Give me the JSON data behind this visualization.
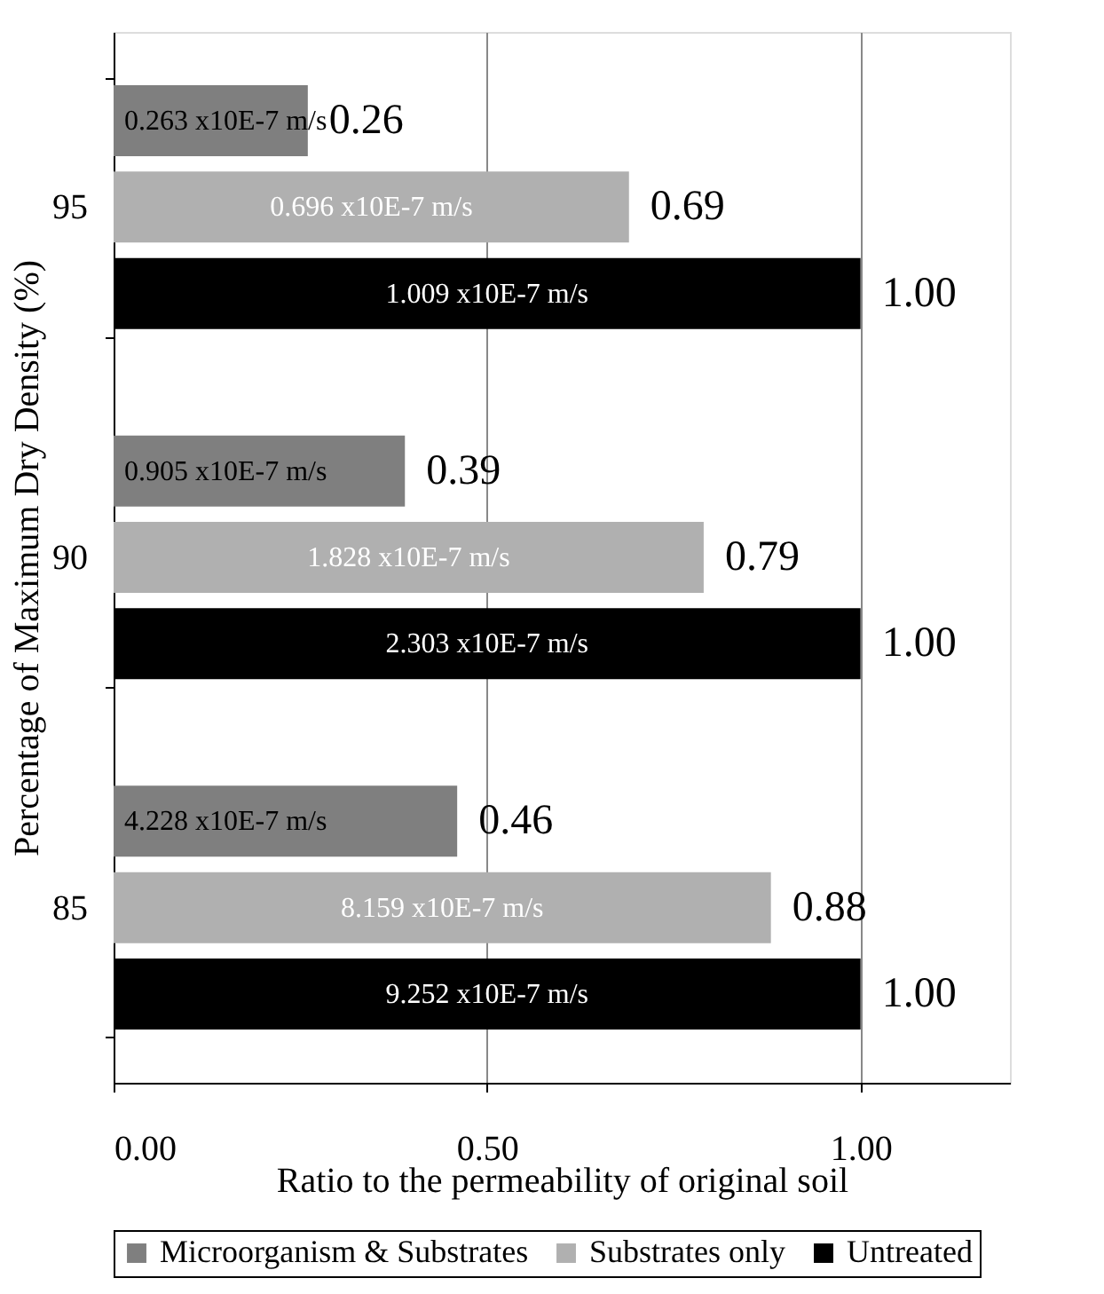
{
  "chart_data": {
    "type": "bar",
    "orientation": "horizontal",
    "xlabel": "Ratio to the permeability of original soil",
    "ylabel": "Percentage of Maximum Dry Density (%)",
    "categories": [
      "95",
      "90",
      "85"
    ],
    "series": [
      {
        "name": "Microorganism & Substrates",
        "color": "#7f7f7f",
        "values": [
          0.26,
          0.39,
          0.46
        ],
        "value_labels": [
          "0.26",
          "0.39",
          "0.46"
        ]
      },
      {
        "name": "Substrates only",
        "color": "#b0b0b0",
        "values": [
          0.69,
          0.79,
          0.88
        ],
        "value_labels": [
          "0.69",
          "0.79",
          "0.88"
        ]
      },
      {
        "name": "Untreated",
        "color": "#000000",
        "values": [
          1.0,
          1.0,
          1.0
        ],
        "value_labels": [
          "1.00",
          "1.00",
          "1.00"
        ]
      }
    ],
    "xlim": [
      0,
      1.2
    ],
    "xticks": [
      {
        "value": 0,
        "label": "0.00"
      },
      {
        "value": 0.5,
        "label": "0.50"
      },
      {
        "value": 1,
        "label": "1.00"
      }
    ],
    "grid": "x",
    "legend": "bottom",
    "annotations": [
      "0.263 x10E-7 m/s",
      "0.696 x10E-7 m/s",
      "1.009 x10E-7 m/s",
      "0.905 x10E-7 m/s",
      "1.828 x10E-7 m/s",
      "2.303 x10E-7 m/s",
      "4.228 x10E-7 m/s",
      "8.159 x10E-7 m/s",
      "9.252 x10E-7 m/s"
    ]
  }
}
